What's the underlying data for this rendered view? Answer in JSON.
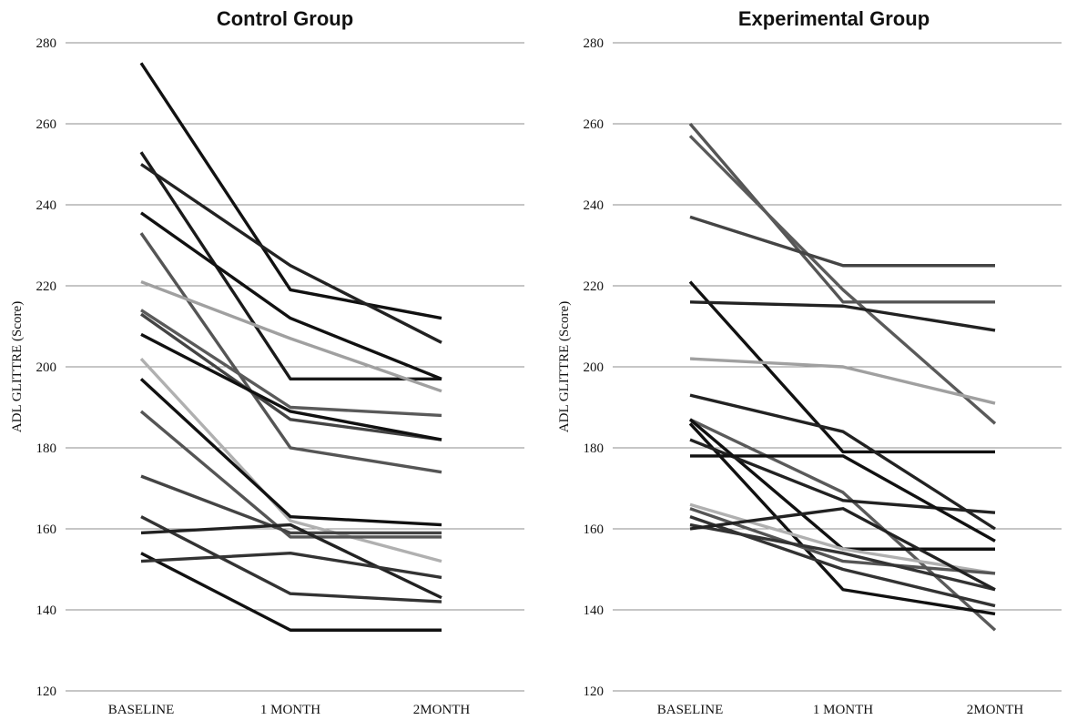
{
  "chart_data": [
    {
      "type": "line",
      "title": "Control Group",
      "ylabel": "ADL GLITTRE (Score)",
      "categories": [
        "BASELINE",
        "1 MONTH",
        "2MONTH"
      ],
      "ylim": [
        120,
        280
      ],
      "yticks": [
        120,
        140,
        160,
        180,
        200,
        220,
        240,
        260,
        280
      ],
      "grid": true,
      "series": [
        {
          "values": [
            275,
            219,
            212
          ],
          "color": "#111111"
        },
        {
          "values": [
            253,
            197,
            197
          ],
          "color": "#1a1a1a"
        },
        {
          "values": [
            250,
            225,
            206
          ],
          "color": "#222222"
        },
        {
          "values": [
            238,
            212,
            197
          ],
          "color": "#111111"
        },
        {
          "values": [
            233,
            180,
            174
          ],
          "color": "#555555"
        },
        {
          "values": [
            221,
            207,
            194
          ],
          "color": "#a0a0a0"
        },
        {
          "values": [
            214,
            190,
            188
          ],
          "color": "#5a5a5a"
        },
        {
          "values": [
            213,
            187,
            182
          ],
          "color": "#444444"
        },
        {
          "values": [
            208,
            189,
            182
          ],
          "color": "#111111"
        },
        {
          "values": [
            202,
            162,
            152
          ],
          "color": "#b0b0b0"
        },
        {
          "values": [
            197,
            163,
            161
          ],
          "color": "#111111"
        },
        {
          "values": [
            189,
            158,
            158
          ],
          "color": "#555555"
        },
        {
          "values": [
            173,
            159,
            159
          ],
          "color": "#444444"
        },
        {
          "values": [
            163,
            144,
            142
          ],
          "color": "#333333"
        },
        {
          "values": [
            159,
            161,
            143
          ],
          "color": "#222222"
        },
        {
          "values": [
            154,
            135,
            135
          ],
          "color": "#111111"
        },
        {
          "values": [
            152,
            154,
            148
          ],
          "color": "#333333"
        }
      ]
    },
    {
      "type": "line",
      "title": "Experimental Group",
      "ylabel": "ADL GLITTRE (Score)",
      "categories": [
        "BASELINE",
        "1 MONTH",
        "2MONTH"
      ],
      "ylim": [
        120,
        280
      ],
      "yticks": [
        120,
        140,
        160,
        180,
        200,
        220,
        240,
        260,
        280
      ],
      "grid": true,
      "series": [
        {
          "values": [
            260,
            216,
            216
          ],
          "color": "#555555"
        },
        {
          "values": [
            257,
            219,
            186
          ],
          "color": "#5a5a5a"
        },
        {
          "values": [
            237,
            225,
            225
          ],
          "color": "#444444"
        },
        {
          "values": [
            221,
            179,
            179
          ],
          "color": "#111111"
        },
        {
          "values": [
            216,
            215,
            209
          ],
          "color": "#222222"
        },
        {
          "values": [
            202,
            200,
            191
          ],
          "color": "#a0a0a0"
        },
        {
          "values": [
            193,
            184,
            160
          ],
          "color": "#222222"
        },
        {
          "values": [
            187,
            169,
            135
          ],
          "color": "#5a5a5a"
        },
        {
          "values": [
            187,
            155,
            155
          ],
          "color": "#111111"
        },
        {
          "values": [
            186,
            145,
            139
          ],
          "color": "#111111"
        },
        {
          "values": [
            182,
            167,
            164
          ],
          "color": "#222222"
        },
        {
          "values": [
            178,
            178,
            157
          ],
          "color": "#111111"
        },
        {
          "values": [
            166,
            155,
            149
          ],
          "color": "#b0b0b0"
        },
        {
          "values": [
            165,
            152,
            149
          ],
          "color": "#555555"
        },
        {
          "values": [
            163,
            150,
            141
          ],
          "color": "#333333"
        },
        {
          "values": [
            161,
            154,
            145
          ],
          "color": "#333333"
        },
        {
          "values": [
            160,
            165,
            145
          ],
          "color": "#222222"
        }
      ]
    }
  ]
}
